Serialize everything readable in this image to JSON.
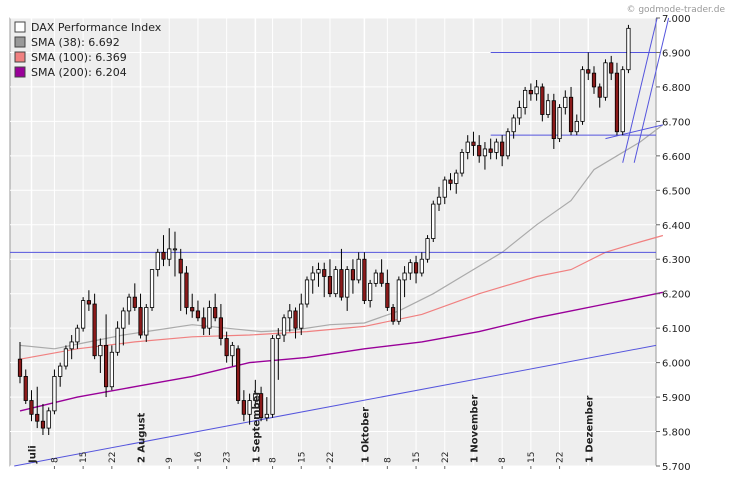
{
  "credit": "© godmode-trader.de",
  "chart_data": {
    "type": "candlestick",
    "ylim": [
      5700,
      7000
    ],
    "grid": true,
    "y_ticks": [
      "7.000",
      "6.900",
      "6.800",
      "6.700",
      "6.600",
      "6.500",
      "6.400",
      "6.300",
      "6.200",
      "6.100",
      "6.000",
      "5.900",
      "5.800",
      "5.700"
    ],
    "y_tick_values": [
      7000,
      6900,
      6800,
      6700,
      6600,
      6500,
      6400,
      6300,
      6200,
      6100,
      6000,
      5900,
      5800,
      5700
    ],
    "day_ticks": [
      {
        "i": 6,
        "label": "8"
      },
      {
        "i": 11,
        "label": "15"
      },
      {
        "i": 16,
        "label": "22"
      },
      {
        "i": 26,
        "label": "9"
      },
      {
        "i": 31,
        "label": "16"
      },
      {
        "i": 36,
        "label": "23"
      },
      {
        "i": 44,
        "label": "8"
      },
      {
        "i": 49,
        "label": "15"
      },
      {
        "i": 54,
        "label": "22"
      },
      {
        "i": 64,
        "label": "8"
      },
      {
        "i": 69,
        "label": "15"
      },
      {
        "i": 74,
        "label": "22"
      },
      {
        "i": 84,
        "label": "8"
      },
      {
        "i": 89,
        "label": "15"
      },
      {
        "i": 94,
        "label": "22"
      }
    ],
    "months": [
      {
        "i": 2,
        "label": "Juli"
      },
      {
        "i": 21,
        "label": "2 August"
      },
      {
        "i": 41,
        "label": "1 September"
      },
      {
        "i": 60,
        "label": "1 Oktober"
      },
      {
        "i": 79,
        "label": "1 November"
      },
      {
        "i": 99,
        "label": "1 Dezember"
      }
    ],
    "legend": [
      {
        "label": "DAX Performance Index",
        "color": "#ffffff"
      },
      {
        "label": "SMA (38): 6.692",
        "color": "#999999"
      },
      {
        "label": "SMA (100): 6.369",
        "color": "#f08080"
      },
      {
        "label": "SMA (200): 6.204",
        "color": "#990099"
      }
    ],
    "ohlc": [
      [
        6010,
        6060,
        5940,
        5960
      ],
      [
        5960,
        5980,
        5880,
        5890
      ],
      [
        5890,
        5920,
        5830,
        5850
      ],
      [
        5850,
        5930,
        5810,
        5830
      ],
      [
        5830,
        5880,
        5790,
        5810
      ],
      [
        5810,
        5870,
        5790,
        5860
      ],
      [
        5860,
        5980,
        5850,
        5960
      ],
      [
        5960,
        6000,
        5930,
        5990
      ],
      [
        5990,
        6050,
        5980,
        6040
      ],
      [
        6040,
        6080,
        6010,
        6060
      ],
      [
        6060,
        6110,
        6040,
        6100
      ],
      [
        6100,
        6190,
        6090,
        6180
      ],
      [
        6180,
        6210,
        6150,
        6170
      ],
      [
        6170,
        6200,
        6010,
        6020
      ],
      [
        6020,
        6070,
        5970,
        6050
      ],
      [
        6050,
        6140,
        5900,
        5930
      ],
      [
        5930,
        6050,
        5920,
        6030
      ],
      [
        6030,
        6120,
        6020,
        6100
      ],
      [
        6100,
        6160,
        6050,
        6150
      ],
      [
        6150,
        6200,
        6110,
        6190
      ],
      [
        6190,
        6230,
        6150,
        6160
      ],
      [
        6160,
        6200,
        6070,
        6080
      ],
      [
        6080,
        6170,
        6060,
        6160
      ],
      [
        6160,
        6270,
        6150,
        6270
      ],
      [
        6270,
        6330,
        6250,
        6320
      ],
      [
        6320,
        6370,
        6280,
        6300
      ],
      [
        6300,
        6390,
        6280,
        6330
      ],
      [
        6330,
        6380,
        6250,
        6330
      ],
      [
        6300,
        6330,
        6150,
        6260
      ],
      [
        6260,
        6280,
        6140,
        6160
      ],
      [
        6160,
        6200,
        6130,
        6150
      ],
      [
        6150,
        6180,
        6120,
        6130
      ],
      [
        6130,
        6160,
        6080,
        6100
      ],
      [
        6100,
        6180,
        6080,
        6160
      ],
      [
        6160,
        6200,
        6120,
        6130
      ],
      [
        6130,
        6170,
        6050,
        6070
      ],
      [
        6070,
        6090,
        6000,
        6020
      ],
      [
        6020,
        6060,
        5990,
        6050
      ],
      [
        6040,
        6050,
        5880,
        5890
      ],
      [
        5890,
        5920,
        5830,
        5850
      ],
      [
        5850,
        5910,
        5820,
        5890
      ],
      [
        5890,
        5950,
        5870,
        5910
      ],
      [
        5910,
        5930,
        5830,
        5840
      ],
      [
        5840,
        5900,
        5830,
        5850
      ],
      [
        5850,
        6080,
        5840,
        6070
      ],
      [
        6070,
        6100,
        5950,
        6080
      ],
      [
        6080,
        6140,
        6060,
        6130
      ],
      [
        6130,
        6170,
        6090,
        6150
      ],
      [
        6150,
        6160,
        6070,
        6100
      ],
      [
        6100,
        6200,
        6080,
        6170
      ],
      [
        6170,
        6250,
        6160,
        6240
      ],
      [
        6240,
        6280,
        6200,
        6260
      ],
      [
        6260,
        6290,
        6220,
        6270
      ],
      [
        6270,
        6290,
        6190,
        6250
      ],
      [
        6250,
        6300,
        6190,
        6200
      ],
      [
        6200,
        6280,
        6190,
        6270
      ],
      [
        6270,
        6330,
        6180,
        6190
      ],
      [
        6190,
        6280,
        6150,
        6270
      ],
      [
        6270,
        6300,
        6200,
        6240
      ],
      [
        6240,
        6320,
        6230,
        6300
      ],
      [
        6300,
        6320,
        6170,
        6180
      ],
      [
        6180,
        6240,
        6160,
        6230
      ],
      [
        6230,
        6270,
        6220,
        6260
      ],
      [
        6260,
        6300,
        6220,
        6230
      ],
      [
        6230,
        6270,
        6150,
        6160
      ],
      [
        6160,
        6170,
        6110,
        6120
      ],
      [
        6120,
        6250,
        6110,
        6240
      ],
      [
        6240,
        6280,
        6190,
        6260
      ],
      [
        6260,
        6300,
        6240,
        6290
      ],
      [
        6290,
        6310,
        6230,
        6260
      ],
      [
        6260,
        6320,
        6250,
        6300
      ],
      [
        6300,
        6370,
        6290,
        6360
      ],
      [
        6360,
        6470,
        6350,
        6460
      ],
      [
        6460,
        6510,
        6440,
        6480
      ],
      [
        6480,
        6540,
        6460,
        6530
      ],
      [
        6530,
        6550,
        6500,
        6520
      ],
      [
        6520,
        6560,
        6490,
        6550
      ],
      [
        6550,
        6620,
        6540,
        6610
      ],
      [
        6610,
        6660,
        6590,
        6640
      ],
      [
        6640,
        6670,
        6600,
        6630
      ],
      [
        6630,
        6660,
        6580,
        6600
      ],
      [
        6600,
        6640,
        6560,
        6620
      ],
      [
        6620,
        6650,
        6590,
        6610
      ],
      [
        6610,
        6650,
        6590,
        6640
      ],
      [
        6640,
        6660,
        6570,
        6600
      ],
      [
        6600,
        6680,
        6590,
        6670
      ],
      [
        6670,
        6720,
        6650,
        6710
      ],
      [
        6710,
        6760,
        6690,
        6740
      ],
      [
        6740,
        6800,
        6720,
        6790
      ],
      [
        6790,
        6810,
        6760,
        6780
      ],
      [
        6780,
        6820,
        6760,
        6800
      ],
      [
        6800,
        6810,
        6700,
        6720
      ],
      [
        6720,
        6780,
        6710,
        6760
      ],
      [
        6760,
        6780,
        6620,
        6650
      ],
      [
        6650,
        6750,
        6640,
        6740
      ],
      [
        6740,
        6790,
        6720,
        6770
      ],
      [
        6770,
        6800,
        6660,
        6670
      ],
      [
        6670,
        6720,
        6660,
        6700
      ],
      [
        6700,
        6860,
        6690,
        6850
      ],
      [
        6850,
        6900,
        6820,
        6840
      ],
      [
        6840,
        6860,
        6780,
        6800
      ],
      [
        6800,
        6810,
        6740,
        6770
      ],
      [
        6770,
        6880,
        6760,
        6870
      ],
      [
        6870,
        6890,
        6820,
        6840
      ],
      [
        6840,
        6870,
        6660,
        6670
      ],
      [
        6670,
        6860,
        6660,
        6850
      ],
      [
        6850,
        6980,
        6840,
        6970
      ]
    ],
    "sma38": [
      [
        0,
        6050
      ],
      [
        6,
        6040
      ],
      [
        12,
        6060
      ],
      [
        18,
        6080
      ],
      [
        24,
        6095
      ],
      [
        30,
        6110
      ],
      [
        36,
        6100
      ],
      [
        42,
        6090
      ],
      [
        48,
        6095
      ],
      [
        54,
        6110
      ],
      [
        60,
        6115
      ],
      [
        66,
        6150
      ],
      [
        72,
        6200
      ],
      [
        78,
        6260
      ],
      [
        84,
        6320
      ],
      [
        90,
        6400
      ],
      [
        96,
        6470
      ],
      [
        100,
        6560
      ],
      [
        104,
        6600
      ],
      [
        108,
        6640
      ],
      [
        112,
        6690
      ]
    ],
    "sma100": [
      [
        0,
        6010
      ],
      [
        10,
        6040
      ],
      [
        20,
        6060
      ],
      [
        30,
        6075
      ],
      [
        40,
        6080
      ],
      [
        50,
        6090
      ],
      [
        60,
        6105
      ],
      [
        70,
        6140
      ],
      [
        80,
        6200
      ],
      [
        90,
        6250
      ],
      [
        96,
        6270
      ],
      [
        102,
        6320
      ],
      [
        108,
        6350
      ],
      [
        112,
        6369
      ]
    ],
    "sma200": [
      [
        0,
        5860
      ],
      [
        10,
        5900
      ],
      [
        20,
        5930
      ],
      [
        30,
        5960
      ],
      [
        40,
        6000
      ],
      [
        50,
        6015
      ],
      [
        60,
        6040
      ],
      [
        70,
        6060
      ],
      [
        80,
        6090
      ],
      [
        90,
        6130
      ],
      [
        96,
        6150
      ],
      [
        102,
        6170
      ],
      [
        108,
        6190
      ],
      [
        112,
        6204
      ]
    ],
    "h_levels": [
      6900,
      6660,
      6320
    ],
    "trendline": [
      [
        -1,
        5700
      ],
      [
        113,
        6050
      ]
    ],
    "channel": [
      [
        105,
        6580
      ],
      [
        111,
        7000
      ],
      [
        107,
        6580
      ],
      [
        113,
        7000
      ],
      [
        102,
        6650
      ],
      [
        112,
        6690
      ]
    ]
  }
}
